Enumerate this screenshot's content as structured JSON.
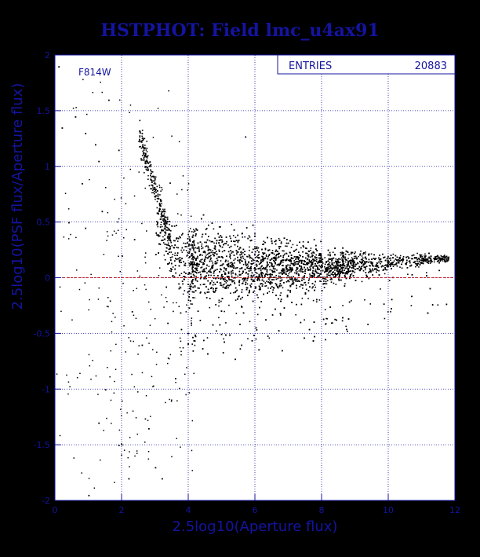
{
  "colors": {
    "background": "#000000",
    "frame": "#ffffff",
    "axis": "#1414a0",
    "grid": "#1414a0",
    "text": "#1414a0",
    "points": "#000000",
    "reference_line": "#cc1111"
  },
  "chart_data": {
    "type": "scatter",
    "title": "HSTPHOT: Field lmc_u4ax91",
    "xlabel": "2.5log10(Aperture flux)",
    "ylabel": "2.5log10(PSF flux/Aperture flux)",
    "xlim": [
      0,
      12
    ],
    "ylim": [
      -2,
      2
    ],
    "xticks": [
      0,
      2,
      4,
      6,
      8,
      10,
      12
    ],
    "yticks": [
      -2,
      -1.5,
      -1,
      -0.5,
      0,
      0.5,
      1,
      1.5,
      2
    ],
    "xtick_labels": [
      "0",
      "2",
      "4",
      "6",
      "8",
      "10",
      "12"
    ],
    "ytick_labels": [
      "-2",
      "-1.5",
      "-1",
      "-0.5",
      "0",
      "0.5",
      "1",
      "1.5",
      "2"
    ],
    "grid": true,
    "filter_label": "F814W",
    "stats": {
      "label": "ENTRIES",
      "value": "20883"
    },
    "reference_line_y": 0,
    "series": [
      {
        "name": "",
        "description": "photometric point cloud",
        "envelope_x": [
          3.1,
          3.5,
          4,
          5,
          6,
          7,
          8,
          9,
          10,
          11,
          11.8
        ],
        "envelope_upper_y": [
          0.65,
          0.55,
          0.45,
          0.42,
          0.38,
          0.34,
          0.3,
          0.27,
          0.25,
          0.22,
          0.2
        ],
        "envelope_center_y": [
          0.45,
          0.25,
          0.15,
          0.12,
          0.1,
          0.1,
          0.1,
          0.12,
          0.14,
          0.17,
          0.18
        ],
        "envelope_lower_y": [
          0.25,
          0.0,
          -0.2,
          -0.25,
          -0.2,
          -0.15,
          -0.05,
          0.02,
          0.08,
          0.12,
          0.15
        ],
        "sample_points": [
          [
            0.1,
            1.9
          ],
          [
            0.6,
            1.45
          ],
          [
            0.9,
            1.3
          ],
          [
            1.3,
            1.05
          ],
          [
            1.6,
            1.6
          ],
          [
            1.2,
            1.2
          ],
          [
            0.2,
            1.35
          ],
          [
            0.8,
            0.85
          ],
          [
            1.9,
            1.15
          ],
          [
            2.6,
            1.3
          ],
          [
            2.75,
            1.05
          ],
          [
            5.7,
            1.27
          ],
          [
            0.4,
            0.5
          ],
          [
            0.9,
            0.45
          ],
          [
            1.4,
            0.6
          ],
          [
            2.0,
            0.2
          ],
          [
            2.3,
            -0.3
          ],
          [
            2.6,
            -0.6
          ],
          [
            1.5,
            -1.0
          ],
          [
            1.3,
            -1.3
          ],
          [
            1.9,
            -1.5
          ],
          [
            2.2,
            -1.8
          ],
          [
            3.0,
            -1.7
          ],
          [
            3.2,
            -1.8
          ],
          [
            6.8,
            -0.65
          ],
          [
            8.1,
            -0.55
          ],
          [
            8.3,
            -0.4
          ],
          [
            1.0,
            -1.95
          ],
          [
            2.8,
            -1.35
          ],
          [
            3.6,
            -0.9
          ]
        ]
      }
    ]
  }
}
